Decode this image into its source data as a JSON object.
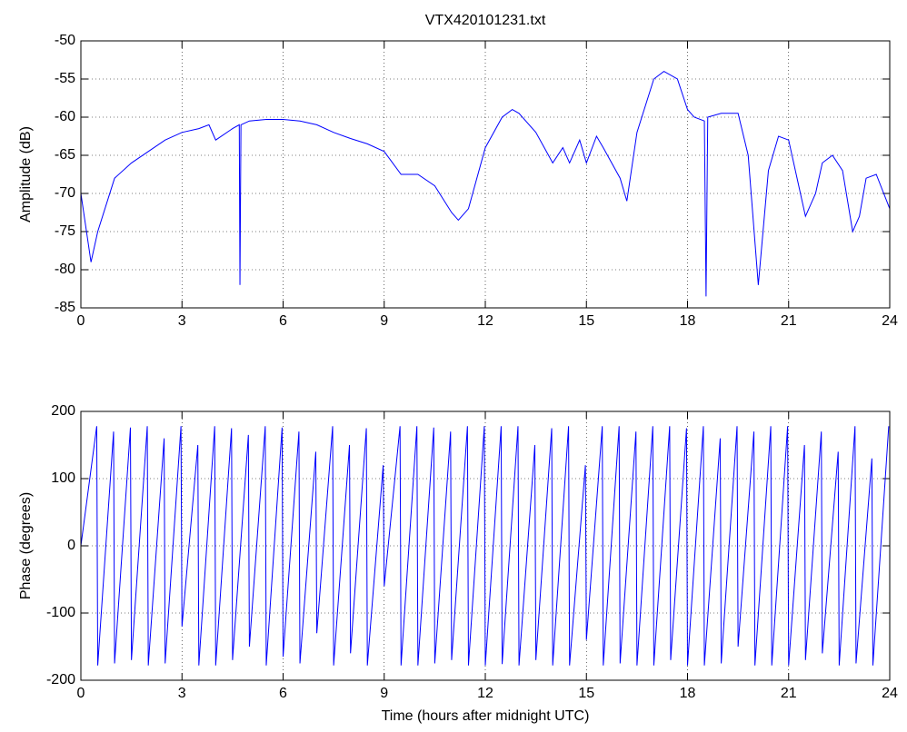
{
  "chart_data": [
    {
      "type": "line",
      "title": "VTX420101231.txt",
      "ylabel": "Amplitude (dB)",
      "color": "#0000ff",
      "grid": true,
      "xlim": [
        0,
        24
      ],
      "xticks": [
        0,
        3,
        6,
        9,
        12,
        15,
        18,
        21,
        24
      ],
      "ylim": [
        -85,
        -50
      ],
      "yticks": [
        -85,
        -80,
        -75,
        -70,
        -65,
        -60,
        -55,
        -50
      ],
      "x": [
        0,
        0.3,
        0.5,
        1,
        1.5,
        2,
        2.5,
        3,
        3.5,
        3.8,
        4,
        4.5,
        4.7,
        4.72,
        4.75,
        5,
        5.5,
        6,
        6.5,
        7,
        7.5,
        8,
        8.5,
        9,
        9.5,
        10,
        10.5,
        11,
        11.2,
        11.5,
        12,
        12.5,
        12.8,
        13,
        13.5,
        14,
        14.3,
        14.5,
        14.8,
        15,
        15.3,
        15.5,
        16,
        16.2,
        16.5,
        17,
        17.3,
        17.7,
        18,
        18.2,
        18.5,
        18.55,
        18.6,
        19,
        19.5,
        19.8,
        20.1,
        20.4,
        20.7,
        21,
        21.3,
        21.5,
        21.8,
        22,
        22.3,
        22.6,
        22.9,
        23.1,
        23.3,
        23.6,
        24
      ],
      "values": [
        -70,
        -79,
        -75,
        -68,
        -66,
        -64.5,
        -63,
        -62,
        -61.5,
        -61,
        -63,
        -61.5,
        -61,
        -82,
        -61,
        -60.5,
        -60.3,
        -60.3,
        -60.5,
        -61,
        -62,
        -62.8,
        -63.5,
        -64.5,
        -67.5,
        -67.5,
        -69,
        -72.5,
        -73.5,
        -72,
        -64,
        -60,
        -59,
        -59.5,
        -62,
        -66,
        -64,
        -66,
        -63,
        -66,
        -62.5,
        -64,
        -68,
        -71,
        -62,
        -55,
        -54,
        -55,
        -59,
        -60,
        -60.5,
        -83.5,
        -60,
        -59.5,
        -59.5,
        -65,
        -82,
        -67,
        -62.5,
        -63,
        -69,
        -73,
        -70,
        -66,
        -65,
        -67,
        -75,
        -73,
        -68,
        -67.5,
        -72
      ]
    },
    {
      "type": "line",
      "xlabel": "Time (hours after midnight UTC)",
      "ylabel": "Phase (degrees)",
      "color": "#0000ff",
      "grid": true,
      "xlim": [
        0,
        24
      ],
      "xticks": [
        0,
        3,
        6,
        9,
        12,
        15,
        18,
        21,
        24
      ],
      "ylim": [
        -200,
        200
      ],
      "yticks": [
        -200,
        -100,
        0,
        100,
        200
      ],
      "x": [
        0,
        0.47,
        0.5,
        0.97,
        1,
        1.47,
        1.5,
        1.97,
        2,
        2.47,
        2.5,
        2.97,
        3,
        3.47,
        3.5,
        3.97,
        4,
        4.47,
        4.5,
        4.97,
        5,
        5.47,
        5.5,
        5.97,
        6,
        6.47,
        6.5,
        6.97,
        7,
        7.47,
        7.5,
        7.97,
        8,
        8.47,
        8.5,
        8.97,
        9,
        9.47,
        9.5,
        9.97,
        10,
        10.47,
        10.5,
        10.97,
        11,
        11.47,
        11.5,
        11.97,
        12,
        12.47,
        12.5,
        12.97,
        13,
        13.47,
        13.5,
        13.97,
        14,
        14.47,
        14.5,
        14.97,
        15,
        15.47,
        15.5,
        15.97,
        16,
        16.47,
        16.5,
        16.97,
        17,
        17.47,
        17.5,
        17.97,
        18,
        18.47,
        18.5,
        18.97,
        19,
        19.47,
        19.5,
        19.97,
        20,
        20.47,
        20.5,
        20.97,
        21,
        21.47,
        21.5,
        21.97,
        22,
        22.47,
        22.5,
        22.97,
        23,
        23.47,
        23.5,
        23.97
      ],
      "values": [
        0,
        178,
        -178,
        170,
        -175,
        176,
        -170,
        178,
        -178,
        160,
        -175,
        178,
        -120,
        150,
        -178,
        178,
        -178,
        175,
        -170,
        165,
        -150,
        178,
        -178,
        176,
        -165,
        170,
        -175,
        140,
        -130,
        178,
        -178,
        150,
        -160,
        175,
        -178,
        120,
        -60,
        178,
        -178,
        178,
        -178,
        176,
        -175,
        170,
        -170,
        178,
        -178,
        178,
        -178,
        178,
        -176,
        178,
        -178,
        150,
        -170,
        175,
        -178,
        178,
        -178,
        120,
        -140,
        178,
        -178,
        178,
        -175,
        170,
        -178,
        178,
        -178,
        178,
        -170,
        175,
        -178,
        178,
        -178,
        160,
        -175,
        178,
        -150,
        170,
        -178,
        178,
        -178,
        178,
        -178,
        150,
        -170,
        170,
        -160,
        140,
        -178,
        178,
        -175,
        130,
        -178,
        178
      ]
    }
  ]
}
